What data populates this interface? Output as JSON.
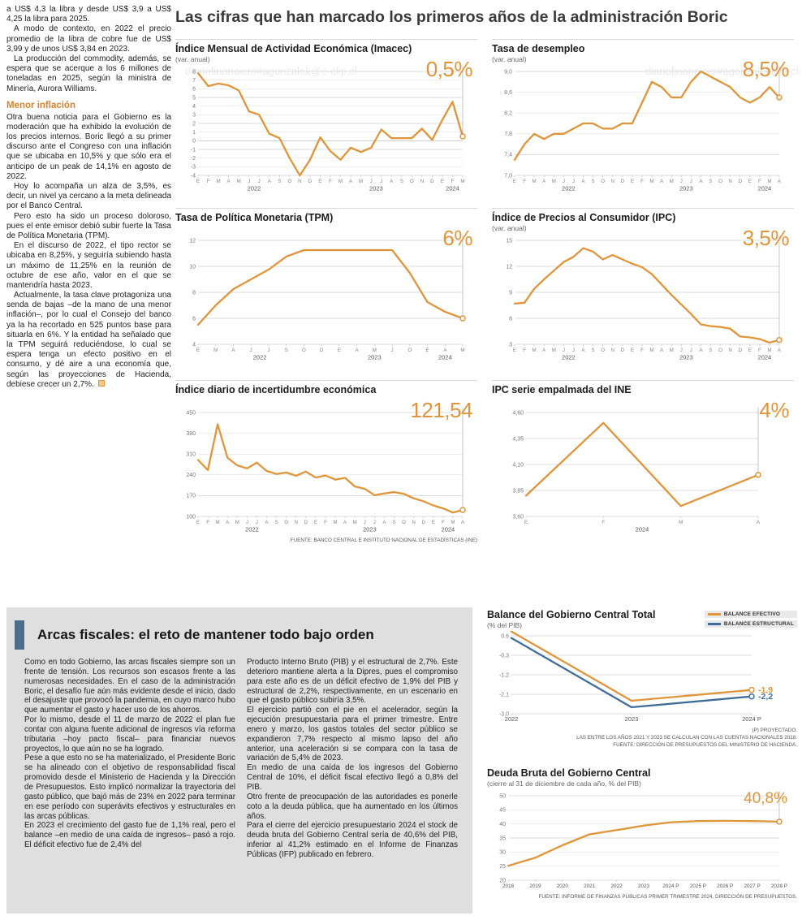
{
  "watermark": "diariofinanciero#agonzalek@e-clip.cl",
  "colors": {
    "accent_orange": "#E0953A",
    "accent_blue": "#3E6D9C",
    "panel_gray": "#DFDFDF",
    "accent_bar_blue": "#4C6E8E"
  },
  "main_title": "Las cifras que han marcado los primeros años de la administración Boric",
  "left_article": {
    "subheading": "Menor inflación",
    "paragraphs": [
      "a US$ 4,3 la libra y desde US$ 3,9 a US$ 4,25 la libra para 2025.",
      "A modo de contexto, en 2022 el precio promedio de la libra de cobre fue de US$ 3,99 y de unos US$ 3,84 en 2023.",
      "La producción del commodity, además, se espera que se acerque a los 6 millones de toneladas en 2025, según la ministra de Minería, Aurora Williams.",
      "Otra buena noticia para el Gobierno es la moderación que ha exhibido la evolución de los precios internos. Boric llegó a su primer discurso ante el Congreso con una inflación que se ubicaba en 10,5% y que sólo era el anticipo de un peak de 14,1% en agosto de 2022.",
      "Hoy lo acompaña un alza de 3,5%, es decir, un nivel ya cercano a la meta delineada por el Banco Central.",
      "Pero esto ha sido un proceso doloroso, pues el ente emisor debió subir fuerte la Tasa de Política Monetaria (TPM).",
      "En el discurso de 2022, el tipo rector se ubicaba en 8,25%, y seguiría subiendo hasta un máximo de 11,25% en la reunión de octubre de ese año, valor en el que se mantendría hasta 2023.",
      "Actualmente, la tasa clave protagoniza una senda de bajas –de la mano de una menor inflación–, por lo cual el Consejo del banco ya la ha recortado en 525 puntos base para situarla en 6%. Y la entidad ha señalado que la TPM seguirá reduciéndose, lo cual se espera tenga un efecto positivo en el consumo, y dé aire a una economía que, según las proyecciones de Hacienda, debiese crecer un 2,7%."
    ]
  },
  "charts_source": "FUENTE: BANCO CENTRAL E INSTITUTO NACIONAL DE ESTADÍSTICAS (INE)",
  "chart_data": [
    {
      "id": "imacec",
      "type": "line",
      "title": "Índice Mensual de Actividad Económica (Imacec)",
      "subtitle": "(var. anual)",
      "highlight": "0,5%",
      "ylim": [
        -4,
        8
      ],
      "yticks": [
        {
          "v": 8,
          "l": "8"
        },
        {
          "v": 7,
          "l": "7"
        },
        {
          "v": 6,
          "l": "6"
        },
        {
          "v": 5,
          "l": "5"
        },
        {
          "v": 4,
          "l": "4"
        },
        {
          "v": 3,
          "l": "3"
        },
        {
          "v": 2,
          "l": "2"
        },
        {
          "v": 1,
          "l": "1"
        },
        {
          "v": 0,
          "l": "0"
        },
        {
          "v": -1,
          "l": "-1"
        },
        {
          "v": -2,
          "l": "-2"
        },
        {
          "v": -3,
          "l": "-3"
        },
        {
          "v": -4,
          "l": "-4"
        }
      ],
      "x_labels": [
        "E",
        "F",
        "M",
        "A",
        "M",
        "J",
        "J",
        "A",
        "S",
        "O",
        "N",
        "D",
        "E",
        "F",
        "M",
        "A",
        "M",
        "J",
        "J",
        "A",
        "S",
        "O",
        "N",
        "D",
        "E",
        "F",
        "M"
      ],
      "year_groups": [
        {
          "label": "2022",
          "start": 0,
          "end": 11
        },
        {
          "label": "2023",
          "start": 12,
          "end": 23
        },
        {
          "label": "2024",
          "start": 24,
          "end": 26
        }
      ],
      "series": [
        {
          "name": "Imacec var. anual %",
          "color": "#E0953A",
          "end_marker": true,
          "end_dropline": true,
          "values": [
            7.8,
            6.3,
            6.6,
            6.4,
            5.8,
            3.4,
            3.0,
            0.8,
            0.3,
            -2.0,
            -4.0,
            -2.2,
            0.4,
            -1.2,
            -2.2,
            -0.8,
            -1.3,
            -0.8,
            1.3,
            0.3,
            0.3,
            0.3,
            1.4,
            0.1,
            2.4,
            4.5,
            0.5
          ]
        }
      ]
    },
    {
      "id": "desempleo",
      "type": "line",
      "title": "Tasa de desempleo",
      "subtitle": "(var. anual)",
      "highlight": "8,5%",
      "ylim": [
        7.0,
        9.0
      ],
      "yticks": [
        {
          "v": 9.0,
          "l": "9,0"
        },
        {
          "v": 8.6,
          "l": "8,6"
        },
        {
          "v": 8.2,
          "l": "8,2"
        },
        {
          "v": 7.8,
          "l": "7,8"
        },
        {
          "v": 7.4,
          "l": "7,4"
        },
        {
          "v": 7.0,
          "l": "7,0"
        }
      ],
      "x_labels": [
        "E",
        "F",
        "M",
        "A",
        "M",
        "J",
        "J",
        "A",
        "S",
        "O",
        "N",
        "D",
        "E",
        "F",
        "M",
        "A",
        "M",
        "J",
        "J",
        "A",
        "S",
        "O",
        "N",
        "D",
        "E",
        "F",
        "M",
        "A"
      ],
      "year_groups": [
        {
          "label": "2022",
          "start": 0,
          "end": 11
        },
        {
          "label": "2023",
          "start": 12,
          "end": 23
        },
        {
          "label": "2024",
          "start": 24,
          "end": 27
        }
      ],
      "series": [
        {
          "name": "Tasa de desempleo %",
          "color": "#E0953A",
          "end_marker": true,
          "end_dropline": true,
          "values": [
            7.3,
            7.6,
            7.8,
            7.7,
            7.8,
            7.8,
            7.9,
            8.0,
            8.0,
            7.9,
            7.9,
            8.0,
            8.0,
            8.4,
            8.8,
            8.7,
            8.5,
            8.5,
            8.8,
            9.0,
            8.9,
            8.8,
            8.7,
            8.5,
            8.4,
            8.5,
            8.7,
            8.5
          ]
        }
      ]
    },
    {
      "id": "tpm",
      "type": "line",
      "title": "Tasa de Política Monetaria (TPM)",
      "subtitle": "",
      "highlight": "6%",
      "ylim": [
        4,
        12
      ],
      "yticks": [
        {
          "v": 12,
          "l": "12"
        },
        {
          "v": 10,
          "l": "10"
        },
        {
          "v": 8,
          "l": "8"
        },
        {
          "v": 6,
          "l": "6"
        },
        {
          "v": 4,
          "l": "4"
        }
      ],
      "x_labels": [
        "E",
        "M",
        "A",
        "J",
        "J",
        "S",
        "O",
        "D",
        "E",
        "A",
        "M",
        "J",
        "O",
        "E",
        "A",
        "M"
      ],
      "year_groups": [
        {
          "label": "2022",
          "start": 0,
          "end": 7
        },
        {
          "label": "2023",
          "start": 8,
          "end": 12
        },
        {
          "label": "2024",
          "start": 13,
          "end": 15
        }
      ],
      "series": [
        {
          "name": "TPM %",
          "color": "#E0953A",
          "end_marker": true,
          "end_dropline": true,
          "values": [
            5.5,
            7.0,
            8.25,
            9.0,
            9.75,
            10.75,
            11.25,
            11.25,
            11.25,
            11.25,
            11.25,
            11.25,
            9.5,
            7.25,
            6.5,
            6.0
          ]
        }
      ]
    },
    {
      "id": "ipc",
      "type": "line",
      "title": "Índice de Precios al Consumidor (IPC)",
      "subtitle": "(var. anual)",
      "highlight": "3,5%",
      "ylim": [
        3,
        15
      ],
      "yticks": [
        {
          "v": 15,
          "l": "15"
        },
        {
          "v": 12,
          "l": "12"
        },
        {
          "v": 9,
          "l": "9"
        },
        {
          "v": 6,
          "l": "6"
        },
        {
          "v": 3,
          "l": "3"
        }
      ],
      "x_labels": [
        "E",
        "F",
        "M",
        "A",
        "M",
        "J",
        "J",
        "A",
        "S",
        "O",
        "N",
        "D",
        "E",
        "F",
        "M",
        "A",
        "M",
        "J",
        "J",
        "A",
        "S",
        "O",
        "N",
        "D",
        "E",
        "F",
        "M",
        "A"
      ],
      "year_groups": [
        {
          "label": "2022",
          "start": 0,
          "end": 11
        },
        {
          "label": "2023",
          "start": 12,
          "end": 23
        },
        {
          "label": "2024",
          "start": 24,
          "end": 27
        }
      ],
      "series": [
        {
          "name": "IPC var. anual %",
          "color": "#E0953A",
          "end_marker": true,
          "end_dropline": true,
          "values": [
            7.7,
            7.8,
            9.4,
            10.5,
            11.5,
            12.5,
            13.1,
            14.1,
            13.7,
            12.8,
            13.3,
            12.8,
            12.3,
            11.9,
            11.1,
            9.9,
            8.7,
            7.6,
            6.5,
            5.3,
            5.1,
            5.0,
            4.8,
            3.9,
            3.8,
            3.6,
            3.2,
            3.5
          ]
        }
      ]
    },
    {
      "id": "incertidumbre",
      "type": "line",
      "title": "Índice diario de incertidumbre económica",
      "subtitle": "",
      "highlight": "121,54",
      "ylim": [
        100,
        450
      ],
      "yticks": [
        {
          "v": 450,
          "l": "450"
        },
        {
          "v": 380,
          "l": "380"
        },
        {
          "v": 310,
          "l": "310"
        },
        {
          "v": 240,
          "l": "240"
        },
        {
          "v": 170,
          "l": "170"
        },
        {
          "v": 100,
          "l": "100"
        }
      ],
      "x_labels": [
        "E",
        "F",
        "M",
        "A",
        "M",
        "J",
        "J",
        "A",
        "S",
        "O",
        "N",
        "D",
        "E",
        "F",
        "M",
        "A",
        "M",
        "J",
        "J",
        "A",
        "S",
        "O",
        "N",
        "D",
        "E",
        "F",
        "M",
        "A"
      ],
      "year_groups": [
        {
          "label": "2022",
          "start": 0,
          "end": 11
        },
        {
          "label": "2023",
          "start": 12,
          "end": 23
        },
        {
          "label": "2024",
          "start": 24,
          "end": 27
        }
      ],
      "series": [
        {
          "name": "Índice de incertidumbre",
          "color": "#E0953A",
          "end_marker": true,
          "end_dropline": true,
          "values": [
            290,
            256,
            410,
            298,
            272,
            262,
            281,
            253,
            243,
            248,
            237,
            251,
            231,
            238,
            224,
            230,
            201,
            193,
            172,
            177,
            182,
            176,
            161,
            151,
            137,
            127,
            113,
            121.54
          ]
        }
      ]
    },
    {
      "id": "ipc_ine",
      "type": "line",
      "title": "IPC serie empalmada del INE",
      "subtitle": "",
      "highlight": "4%",
      "ylim": [
        3.6,
        4.6
      ],
      "yticks": [
        {
          "v": 4.6,
          "l": "4,60"
        },
        {
          "v": 4.35,
          "l": "4,35"
        },
        {
          "v": 4.1,
          "l": "4,10"
        },
        {
          "v": 3.85,
          "l": "3,85"
        },
        {
          "v": 3.6,
          "l": "3,60"
        }
      ],
      "x_labels": [
        "E",
        "F",
        "M",
        "A"
      ],
      "year_groups": [
        {
          "label": "2024",
          "start": 0,
          "end": 3
        }
      ],
      "series": [
        {
          "name": "IPC serie empalmada %",
          "color": "#E0953A",
          "end_marker": true,
          "end_dropline": true,
          "values": [
            3.8,
            4.5,
            3.7,
            4.0
          ]
        }
      ]
    },
    {
      "id": "balance_gobierno",
      "type": "line",
      "title": "Balance del Gobierno Central Total",
      "subtitle": "(% del PIB)",
      "ylim": [
        -3.0,
        0.6
      ],
      "yticks": [
        {
          "v": 0.6,
          "l": "0,6"
        },
        {
          "v": -0.3,
          "l": "-0,3"
        },
        {
          "v": -1.2,
          "l": "-1,2"
        },
        {
          "v": -2.1,
          "l": "-2,1"
        },
        {
          "v": -3.0,
          "l": "-3,0"
        }
      ],
      "x_labels": [
        "2022",
        "2023",
        "2024 P"
      ],
      "legend": [
        {
          "label": "BALANCE EFECTIVO",
          "color": "#E0953A"
        },
        {
          "label": "BALANCE ESTRUCTURAL",
          "color": "#3E6D9C"
        }
      ],
      "series": [
        {
          "name": "Balance efectivo",
          "color": "#E0953A",
          "end_marker": true,
          "end_label": "-1,9",
          "values": [
            0.8,
            -2.4,
            -1.9
          ]
        },
        {
          "name": "Balance estructural",
          "color": "#3E6D9C",
          "end_marker": true,
          "end_label": "-2,2",
          "values": [
            0.5,
            -2.7,
            -2.2
          ]
        }
      ],
      "footnotes": [
        "(P) PROYECTADO.",
        "LAS ENTRE LOS AÑOS 2021 Y 2023 SE CALCULAN CON LAS CUENTAS NACIONALES 2018.",
        "FUENTE: DIRECCIÓN DE PRESUPUESTOS DEL MINISTERIO DE HACIENDA."
      ]
    },
    {
      "id": "deuda_bruta",
      "type": "line",
      "title": "Deuda Bruta del Gobierno Central",
      "subtitle": "(cierre al 31 de diciembre de cada año, % del PIB)",
      "highlight": "40,8%",
      "ylim": [
        20,
        50
      ],
      "yticks": [
        {
          "v": 50,
          "l": "50"
        },
        {
          "v": 45,
          "l": "45"
        },
        {
          "v": 40,
          "l": "40"
        },
        {
          "v": 35,
          "l": "35"
        },
        {
          "v": 30,
          "l": "30"
        },
        {
          "v": 25,
          "l": "25"
        },
        {
          "v": 20,
          "l": "20"
        }
      ],
      "x_labels": [
        "2018",
        "2019",
        "2020",
        "2021",
        "2022",
        "2023",
        "2024 P",
        "2025 P",
        "2026 P",
        "2027 P",
        "2028 P"
      ],
      "series": [
        {
          "name": "Deuda bruta % del PIB",
          "color": "#E0953A",
          "end_marker": true,
          "end_dropline": true,
          "values": [
            25.1,
            28.0,
            32.4,
            36.3,
            37.8,
            39.4,
            40.6,
            41.0,
            41.1,
            41.0,
            40.8
          ]
        }
      ],
      "footnotes": [
        "FUENTE: INFORME DE FINANZAS PÚBLICAS PRIMER TRIMESTRE 2024, DIRECCIÓN DE PRESUPUESTOS."
      ]
    }
  ],
  "fiscal_section": {
    "title": "Arcas fiscales: el reto de mantener todo bajo orden",
    "col1": [
      "Como en todo Gobierno, las arcas fiscales siempre son un frente de tensión. Los recursos son escasos frente a las numerosas necesidades. En el caso de la administración Boric, el desafío fue aún más evidente desde el inicio, dado el desajuste que provocó la pandemia, en cuyo marco hubo que aumentar el gasto y hacer uso de los ahorros.",
      "Por lo mismo, desde el 11 de marzo de 2022 el plan fue contar con alguna fuente adicional de ingresos vía reforma tributaria –hoy pacto fiscal– para financiar nuevos proyectos, lo que aún no se ha logrado.",
      "Pese a que esto no se ha materializado, el Presidente Boric se ha alineado con el objetivo de responsabilidad fiscal promovido desde el Ministerio de Hacienda y la Dirección de Presupuestos. Esto implicó normalizar la trayectoria del gasto público, que bajó más de 23% en 2022 para terminar en ese período con superávits efectivos y estructurales en las arcas públicas.",
      "En 2023 el crecimiento del gasto fue de 1,1% real, pero el balance –en medio de una caída de ingresos– pasó a rojo. El déficit efectivo fue de 2,4% del"
    ],
    "col2": [
      "Producto Interno Bruto (PIB) y el estructural de 2,7%. Este deterioro mantiene alerta a la Dipres, pues el compromiso para este año es de un déficit efectivo de 1,9% del PIB y estructural de 2,2%, respectivamente, en un escenario en que el gasto público subiría 3,5%.",
      "El ejercicio partió con el pie en el acelerador, según la ejecución presupuestaria para el primer trimestre. Entre enero y marzo, los gastos totales del sector público se expandieron 7,7% respecto al mismo lapso del año anterior, una aceleración si se compara con la tasa de variación de 5,4% de 2023.",
      "En medio de una caída de los ingresos del Gobierno Central de 10%, el déficit fiscal efectivo llegó a 0,8% del PIB.",
      "Otro frente de preocupación de las autoridades es ponerle coto a la deuda pública, que ha aumentado en los últimos años.",
      "Para el cierre del ejercicio presupuestario 2024 el stock de deuda bruta del Gobierno Central sería de 40,6% del PIB, inferior al 41,2% estimado en el Informe de Finanzas Públicas (IFP) publicado en febrero."
    ]
  }
}
